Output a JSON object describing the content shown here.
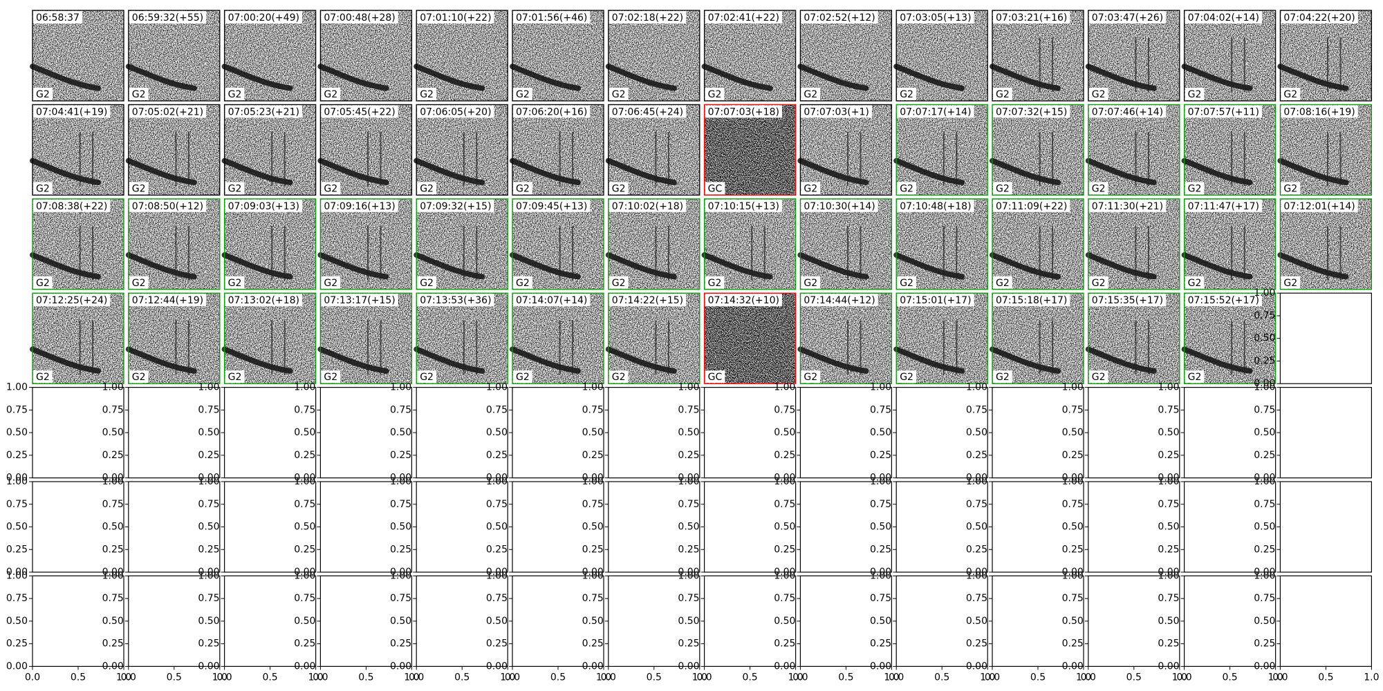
{
  "panels": [
    {
      "time": "06:58:37",
      "label": "G2",
      "color": "#000000"
    },
    {
      "time": "06:59:32(+55)",
      "label": "G2",
      "color": "#000000"
    },
    {
      "time": "07:00:20(+49)",
      "label": "G2",
      "color": "#000000"
    },
    {
      "time": "07:00:48(+28)",
      "label": "G2",
      "color": "#000000"
    },
    {
      "time": "07:01:10(+22)",
      "label": "G2",
      "color": "#000000"
    },
    {
      "time": "07:01:56(+46)",
      "label": "G2",
      "color": "#000000"
    },
    {
      "time": "07:02:18(+22)",
      "label": "G2",
      "color": "#000000"
    },
    {
      "time": "07:02:41(+22)",
      "label": "G2",
      "color": "#000000"
    },
    {
      "time": "07:02:52(+12)",
      "label": "G2",
      "color": "#000000"
    },
    {
      "time": "07:03:05(+13)",
      "label": "G2",
      "color": "#000000"
    },
    {
      "time": "07:03:21(+16)",
      "label": "G2",
      "color": "#000000"
    },
    {
      "time": "07:03:47(+26)",
      "label": "G2",
      "color": "#000000"
    },
    {
      "time": "07:04:02(+14)",
      "label": "G2",
      "color": "#000000"
    },
    {
      "time": "07:04:22(+20)",
      "label": "G2",
      "color": "#000000"
    },
    {
      "time": "07:04:41(+19)",
      "label": "G2",
      "color": "#000000"
    },
    {
      "time": "07:05:02(+21)",
      "label": "G2",
      "color": "#000000"
    },
    {
      "time": "07:05:23(+21)",
      "label": "G2",
      "color": "#000000"
    },
    {
      "time": "07:05:45(+22)",
      "label": "G2",
      "color": "#000000"
    },
    {
      "time": "07:06:05(+20)",
      "label": "G2",
      "color": "#000000"
    },
    {
      "time": "07:06:20(+16)",
      "label": "G2",
      "color": "#000000"
    },
    {
      "time": "07:06:45(+24)",
      "label": "G2",
      "color": "#000000"
    },
    {
      "time": "07:07:03(+18)",
      "label": "GC",
      "color": "#ff0000"
    },
    {
      "time": "07:07:03(+1)",
      "label": "G2",
      "color": "#000000"
    },
    {
      "time": "07:07:17(+14)",
      "label": "G2",
      "color": "#00a000"
    },
    {
      "time": "07:07:32(+15)",
      "label": "G2",
      "color": "#00a000"
    },
    {
      "time": "07:07:46(+14)",
      "label": "G2",
      "color": "#00a000"
    },
    {
      "time": "07:07:57(+11)",
      "label": "G2",
      "color": "#00a000"
    },
    {
      "time": "07:08:16(+19)",
      "label": "G2",
      "color": "#00a000"
    },
    {
      "time": "07:08:38(+22)",
      "label": "G2",
      "color": "#00a000"
    },
    {
      "time": "07:08:50(+12)",
      "label": "G2",
      "color": "#00a000"
    },
    {
      "time": "07:09:03(+13)",
      "label": "G2",
      "color": "#00a000"
    },
    {
      "time": "07:09:16(+13)",
      "label": "G2",
      "color": "#00a000"
    },
    {
      "time": "07:09:32(+15)",
      "label": "G2",
      "color": "#00a000"
    },
    {
      "time": "07:09:45(+13)",
      "label": "G2",
      "color": "#00a000"
    },
    {
      "time": "07:10:02(+18)",
      "label": "G2",
      "color": "#00a000"
    },
    {
      "time": "07:10:15(+13)",
      "label": "G2",
      "color": "#00a000"
    },
    {
      "time": "07:10:30(+14)",
      "label": "G2",
      "color": "#00a000"
    },
    {
      "time": "07:10:48(+18)",
      "label": "G2",
      "color": "#00a000"
    },
    {
      "time": "07:11:09(+22)",
      "label": "G2",
      "color": "#00a000"
    },
    {
      "time": "07:11:30(+21)",
      "label": "G2",
      "color": "#00a000"
    },
    {
      "time": "07:11:47(+17)",
      "label": "G2",
      "color": "#00a000"
    },
    {
      "time": "07:12:01(+14)",
      "label": "G2",
      "color": "#00a000"
    },
    {
      "time": "07:12:25(+24)",
      "label": "G2",
      "color": "#00a000"
    },
    {
      "time": "07:12:44(+19)",
      "label": "G2",
      "color": "#00a000"
    },
    {
      "time": "07:13:02(+18)",
      "label": "G2",
      "color": "#00a000"
    },
    {
      "time": "07:13:17(+15)",
      "label": "G2",
      "color": "#00a000"
    },
    {
      "time": "07:13:53(+36)",
      "label": "G2",
      "color": "#00a000"
    },
    {
      "time": "07:14:07(+14)",
      "label": "G2",
      "color": "#00a000"
    },
    {
      "time": "07:14:22(+15)",
      "label": "G2",
      "color": "#00a000"
    },
    {
      "time": "07:14:32(+10)",
      "label": "GC",
      "color": "#ff0000"
    },
    {
      "time": "07:14:44(+12)",
      "label": "G2",
      "color": "#00a000"
    },
    {
      "time": "07:15:01(+17)",
      "label": "G2",
      "color": "#00a000"
    },
    {
      "time": "07:15:18(+17)",
      "label": "G2",
      "color": "#00a000"
    },
    {
      "time": "07:15:35(+17)",
      "label": "G2",
      "color": "#00a000"
    },
    {
      "time": "07:15:52(+17)",
      "label": "G2",
      "color": "#00a000"
    }
  ],
  "yticks": [
    {
      "value": 0,
      "label": "0.00"
    },
    {
      "value": 0.25,
      "label": "0.25"
    },
    {
      "value": 0.5,
      "label": "0.50"
    },
    {
      "value": 0.75,
      "label": "0.75"
    },
    {
      "value": 1,
      "label": "1.00"
    }
  ],
  "xticks": [
    {
      "value": 0,
      "label": "0.0"
    },
    {
      "value": 0.5,
      "label": "0.5"
    },
    {
      "value": 1,
      "label": "1.0"
    }
  ]
}
